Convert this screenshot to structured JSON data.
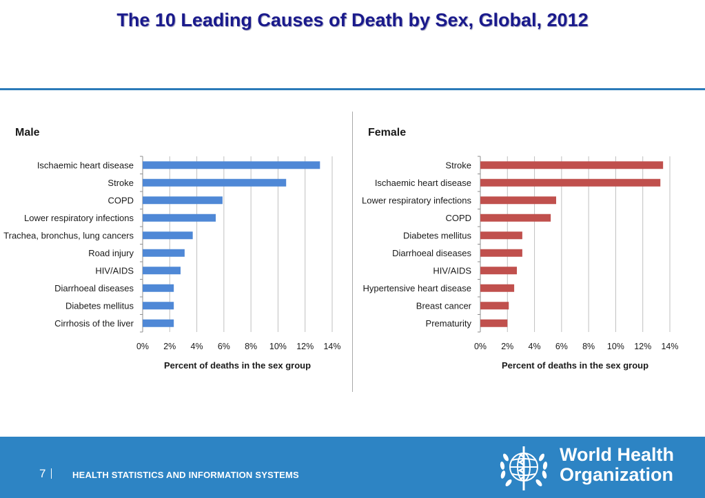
{
  "slide": {
    "title": "The 10 Leading Causes of Death by Sex, Global, 2012"
  },
  "footer": {
    "page_number": "7",
    "section": "HEALTH STATISTICS AND INFORMATION SYSTEMS",
    "org_line1": "World Health",
    "org_line2": "Organization"
  },
  "colors": {
    "male_bar": "#4f88d6",
    "female_bar": "#c0504d",
    "title": "#1a1a8c",
    "footer_bg": "#2d84c4"
  },
  "chart_data": [
    {
      "type": "bar",
      "orientation": "horizontal",
      "title": "Male",
      "categories": [
        "Ischaemic heart disease",
        "Stroke",
        "COPD",
        "Lower respiratory infections",
        "Trachea, bronchus, lung cancers",
        "Road injury",
        "HIV/AIDS",
        "Diarrhoeal diseases",
        "Diabetes mellitus",
        "Cirrhosis of the liver"
      ],
      "values": [
        13.1,
        10.6,
        5.9,
        5.4,
        3.7,
        3.1,
        2.8,
        2.3,
        2.3,
        2.3
      ],
      "xlabel": "Percent of deaths in the sex group",
      "ylabel": "",
      "xlim": [
        0,
        14
      ],
      "xticks": [
        "0%",
        "2%",
        "4%",
        "6%",
        "8%",
        "10%",
        "12%",
        "14%"
      ],
      "grid": true,
      "color": "#4f88d6"
    },
    {
      "type": "bar",
      "orientation": "horizontal",
      "title": "Female",
      "categories": [
        "Stroke",
        "Ischaemic heart disease",
        "Lower respiratory infections",
        "COPD",
        "Diabetes mellitus",
        "Diarrhoeal diseases",
        "HIV/AIDS",
        "Hypertensive heart disease",
        "Breast cancer",
        "Prematurity"
      ],
      "values": [
        13.5,
        13.3,
        5.6,
        5.2,
        3.1,
        3.1,
        2.7,
        2.5,
        2.1,
        2.0
      ],
      "xlabel": "Percent of deaths in the sex group",
      "ylabel": "",
      "xlim": [
        0,
        14
      ],
      "xticks": [
        "0%",
        "2%",
        "4%",
        "6%",
        "8%",
        "10%",
        "12%",
        "14%"
      ],
      "grid": true,
      "color": "#c0504d"
    }
  ]
}
